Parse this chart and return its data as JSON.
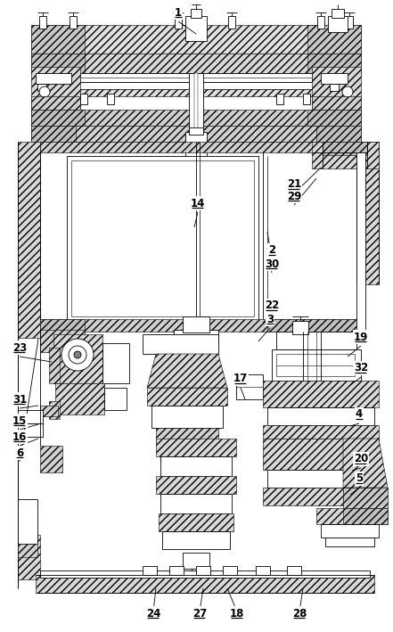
{
  "bg": "#ffffff",
  "lc": "#000000",
  "lw": 0.6,
  "hatch_lw": 0.4,
  "label_fs": 8.5,
  "labels": [
    [
      "1",
      200,
      14
    ],
    [
      "2",
      305,
      281
    ],
    [
      "3",
      303,
      358
    ],
    [
      "4",
      403,
      465
    ],
    [
      "5",
      403,
      537
    ],
    [
      "6",
      22,
      508
    ],
    [
      "14",
      222,
      228
    ],
    [
      "15",
      22,
      472
    ],
    [
      "16",
      22,
      490
    ],
    [
      "17",
      270,
      425
    ],
    [
      "18",
      266,
      688
    ],
    [
      "19",
      405,
      378
    ],
    [
      "20",
      405,
      515
    ],
    [
      "21",
      330,
      207
    ],
    [
      "22",
      305,
      343
    ],
    [
      "23",
      22,
      390
    ],
    [
      "24",
      172,
      688
    ],
    [
      "27",
      224,
      688
    ],
    [
      "28",
      336,
      688
    ],
    [
      "29",
      330,
      220
    ],
    [
      "30",
      305,
      296
    ],
    [
      "31",
      22,
      448
    ],
    [
      "32",
      405,
      413
    ]
  ],
  "leader_lines": [
    [
      "1",
      200,
      20,
      220,
      38
    ],
    [
      "2",
      305,
      287,
      300,
      260
    ],
    [
      "3",
      303,
      364,
      290,
      383
    ],
    [
      "4",
      403,
      471,
      393,
      478
    ],
    [
      "5",
      403,
      543,
      393,
      555
    ],
    [
      "6",
      22,
      514,
      43,
      380
    ],
    [
      "14",
      222,
      234,
      218,
      255
    ],
    [
      "15",
      22,
      478,
      43,
      476
    ],
    [
      "16",
      22,
      496,
      43,
      492
    ],
    [
      "17",
      270,
      431,
      275,
      448
    ],
    [
      "18",
      266,
      682,
      255,
      660
    ],
    [
      "19",
      405,
      384,
      390,
      400
    ],
    [
      "20",
      405,
      521,
      395,
      528
    ],
    [
      "21",
      330,
      213,
      360,
      188
    ],
    [
      "22",
      305,
      349,
      295,
      362
    ],
    [
      "23",
      22,
      396,
      58,
      406
    ],
    [
      "24",
      172,
      682,
      175,
      660
    ],
    [
      "27",
      224,
      682,
      228,
      660
    ],
    [
      "28",
      336,
      682,
      340,
      660
    ],
    [
      "29",
      330,
      226,
      355,
      200
    ],
    [
      "30",
      305,
      302,
      300,
      278
    ],
    [
      "31",
      22,
      454,
      43,
      455
    ],
    [
      "32",
      405,
      419,
      393,
      432
    ]
  ]
}
